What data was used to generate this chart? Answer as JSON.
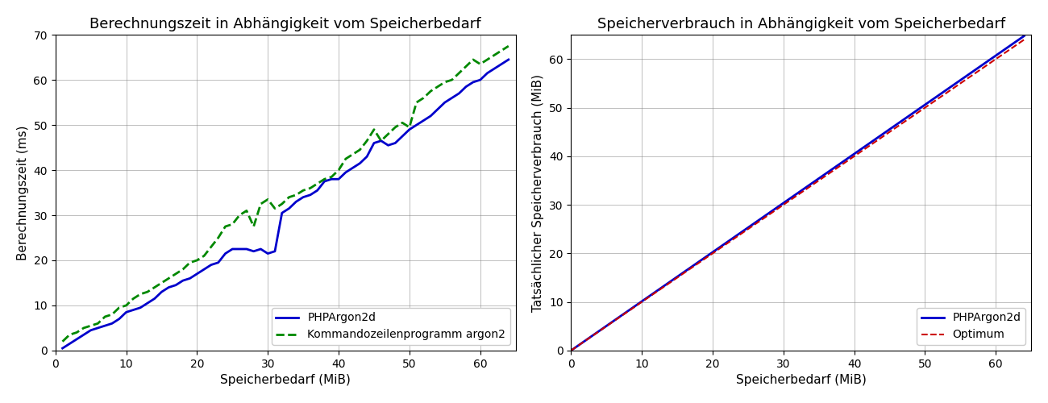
{
  "left_title": "Berechnungszeit in Abhängigkeit vom Speicherbedarf",
  "right_title": "Speicherverbrauch in Abhängigkeit vom Speicherbedarf",
  "left_xlabel": "Speicherbedarf (MiB)",
  "left_ylabel": "Berechnungszeit (ms)",
  "right_xlabel": "Speicherbedarf (MiB)",
  "right_ylabel": "Tatsächlicher Speicherverbrauch (MiB)",
  "left_xlim": [
    0,
    65
  ],
  "left_ylim": [
    0,
    70
  ],
  "right_xlim": [
    0,
    65
  ],
  "right_ylim": [
    0,
    65
  ],
  "left_xticks": [
    0,
    10,
    20,
    30,
    40,
    50,
    60
  ],
  "left_yticks": [
    0,
    10,
    20,
    30,
    40,
    50,
    60,
    70
  ],
  "right_xticks": [
    0,
    10,
    20,
    30,
    40,
    50,
    60
  ],
  "right_yticks": [
    0,
    10,
    20,
    30,
    40,
    50,
    60
  ],
  "php_color": "#0000cc",
  "ref_color": "#008800",
  "optimum_color": "#cc0000",
  "legend_php": "PHPArgon2d",
  "legend_ref": "Kommandozeilenprogramm argon2",
  "legend_optimum": "Optimum",
  "memory_factor": 1.012,
  "php_x": [
    1,
    2,
    3,
    4,
    5,
    6,
    7,
    8,
    9,
    10,
    11,
    12,
    13,
    14,
    15,
    16,
    17,
    18,
    19,
    20,
    21,
    22,
    23,
    24,
    25,
    26,
    27,
    28,
    29,
    30,
    31,
    32,
    33,
    34,
    35,
    36,
    37,
    38,
    39,
    40,
    41,
    42,
    43,
    44,
    45,
    46,
    47,
    48,
    49,
    50,
    51,
    52,
    53,
    54,
    55,
    56,
    57,
    58,
    59,
    60,
    61,
    62,
    63,
    64
  ],
  "php_y": [
    0.5,
    1.5,
    2.5,
    3.5,
    4.5,
    5.0,
    5.5,
    6.0,
    7.0,
    8.5,
    9.0,
    9.5,
    10.5,
    11.5,
    13.0,
    14.0,
    14.5,
    15.5,
    16.0,
    17.0,
    18.0,
    19.0,
    19.5,
    21.5,
    22.5,
    22.5,
    22.5,
    22.0,
    22.5,
    21.5,
    22.0,
    30.5,
    31.5,
    33.0,
    34.0,
    34.5,
    35.5,
    37.5,
    38.0,
    38.0,
    39.5,
    40.5,
    41.5,
    43.0,
    46.0,
    46.5,
    45.5,
    46.0,
    47.5,
    49.0,
    50.0,
    51.0,
    52.0,
    53.5,
    55.0,
    56.0,
    57.0,
    58.5,
    59.5,
    60.0,
    61.5,
    62.5,
    63.5,
    64.5
  ],
  "ref_x": [
    1,
    2,
    3,
    4,
    5,
    6,
    7,
    8,
    9,
    10,
    11,
    12,
    13,
    14,
    15,
    16,
    17,
    18,
    19,
    20,
    21,
    22,
    23,
    24,
    25,
    26,
    27,
    28,
    29,
    30,
    31,
    32,
    33,
    34,
    35,
    36,
    37,
    38,
    39,
    40,
    41,
    42,
    43,
    44,
    45,
    46,
    47,
    48,
    49,
    50,
    51,
    52,
    53,
    54,
    55,
    56,
    57,
    58,
    59,
    60,
    61,
    62,
    63,
    64
  ],
  "ref_y": [
    2.0,
    3.5,
    4.0,
    5.0,
    5.5,
    6.0,
    7.5,
    8.0,
    9.5,
    10.0,
    11.5,
    12.5,
    13.0,
    14.0,
    15.0,
    16.0,
    17.0,
    18.0,
    19.5,
    20.0,
    21.0,
    23.0,
    25.0,
    27.5,
    28.0,
    30.0,
    31.0,
    27.5,
    32.5,
    33.5,
    31.5,
    32.5,
    34.0,
    34.5,
    35.5,
    36.0,
    37.0,
    38.0,
    38.5,
    40.0,
    42.5,
    43.5,
    44.5,
    46.5,
    49.0,
    46.5,
    48.0,
    49.5,
    50.5,
    49.5,
    55.0,
    56.0,
    57.5,
    58.5,
    59.5,
    60.0,
    61.5,
    63.0,
    64.5,
    63.5,
    64.5,
    65.5,
    66.5,
    67.5
  ]
}
